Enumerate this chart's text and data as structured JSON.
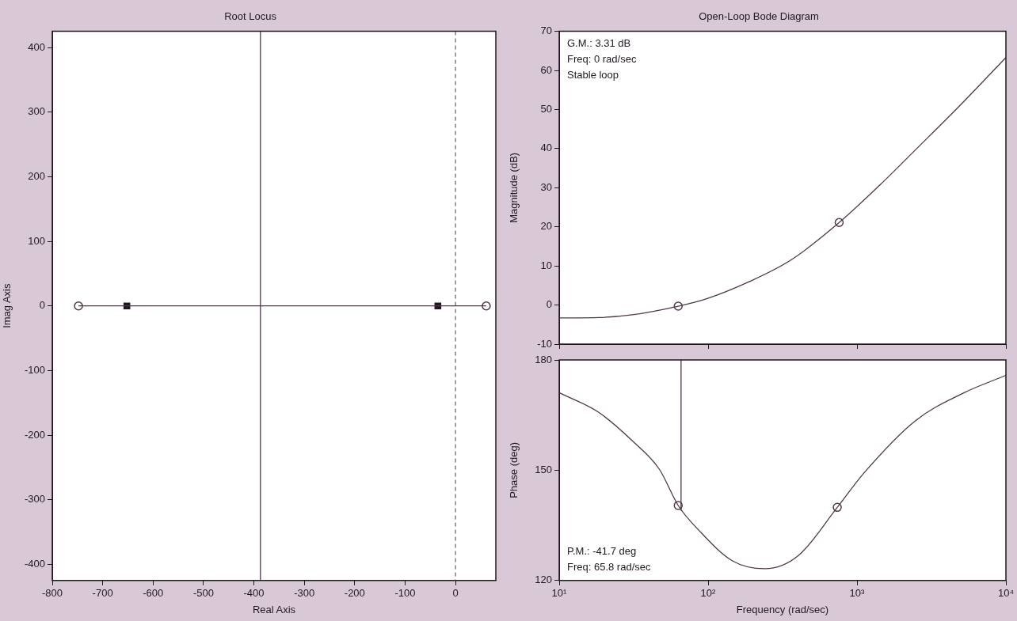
{
  "chart_data": [
    {
      "type": "line",
      "title": "Root Locus",
      "xlabel": "Real Axis",
      "ylabel": "Imag Axis",
      "xlim": [
        -800,
        80
      ],
      "ylim": [
        -425,
        425
      ],
      "xticks": [
        -800,
        -700,
        -600,
        -500,
        -400,
        -300,
        -200,
        -100,
        0
      ],
      "yticks": [
        -400,
        -300,
        -200,
        -100,
        0,
        100,
        200,
        300,
        400
      ],
      "ref_lines": [
        {
          "axis": "x",
          "value": 0,
          "line_style": "dashed",
          "color": "#503848"
        }
      ],
      "series": [
        {
          "type": "line",
          "color": "#503848",
          "x": [
            -748,
            61
          ],
          "values": [
            0,
            0
          ]
        },
        {
          "type": "line",
          "color": "#503848",
          "x": [
            -387,
            -387
          ],
          "values": [
            -425,
            425
          ]
        },
        {
          "type": "scatter",
          "marker": "circle",
          "color": "#503848",
          "x": [
            -748,
            61
          ],
          "values": [
            0,
            0
          ]
        },
        {
          "type": "scatter",
          "marker": "square",
          "color": "#201820",
          "x": [
            -652,
            -35
          ],
          "values": [
            0,
            0
          ]
        }
      ]
    },
    {
      "type": "line",
      "title": "Open-Loop Bode Diagram",
      "ylabel": "Magnitude (dB)",
      "log": "x",
      "tick_labels": "y",
      "xlim": [
        10,
        10000
      ],
      "ylim": [
        -10,
        70
      ],
      "xticks": [
        {
          "value": 10,
          "label": null
        },
        {
          "value": 100,
          "label": null
        },
        {
          "value": 1000,
          "label": null
        },
        {
          "value": 10000,
          "label": null
        }
      ],
      "yticks": [
        -10,
        0,
        10,
        20,
        30,
        40,
        50,
        60,
        70
      ],
      "annotations": [
        "G.M.: 3.31 dB",
        "Freq: 0 rad/sec",
        "Stable loop"
      ],
      "series": [
        {
          "type": "line",
          "color": "#503848",
          "x": [
            10,
            18.5,
            31,
            63,
            96,
            187,
            363,
            759,
            1480,
            2455,
            4786,
            10000
          ],
          "values": [
            -3.3,
            -3.2,
            -2.5,
            -0.3,
            1.5,
            5.9,
            11.6,
            21.1,
            31.3,
            39.6,
            50.6,
            63.3
          ]
        },
        {
          "type": "scatter",
          "marker": "circle",
          "color": "#503848",
          "x": [
            63,
            759
          ],
          "values": [
            -0.3,
            21.1
          ]
        }
      ]
    },
    {
      "type": "line",
      "xlabel": "Frequency (rad/sec)",
      "ylabel": "Phase (deg)",
      "log": "x",
      "xlim": [
        10,
        10000
      ],
      "ylim": [
        120,
        180
      ],
      "xticks": [
        {
          "value": 10,
          "label": "10¹"
        },
        {
          "value": 100,
          "label": "10²"
        },
        {
          "value": 1000,
          "label": "10³"
        },
        {
          "value": 10000,
          "label": "10⁴"
        }
      ],
      "yticks": [
        120,
        150,
        180
      ],
      "annotations": [
        "P.M.: -41.7 deg",
        "Freq: 65.8 rad/sec"
      ],
      "series": [
        {
          "type": "line",
          "color": "#503848",
          "x": [
            10,
            18.5,
            31,
            47,
            63,
            87,
            145,
            240,
            404,
            737,
            1122,
            2455,
            5248,
            10000
          ],
          "values": [
            171.1,
            165.7,
            158,
            150.3,
            140.4,
            133.6,
            125.4,
            123.2,
            126.8,
            139.9,
            149.4,
            163.4,
            171.1,
            175.8
          ]
        },
        {
          "type": "line",
          "color": "#503848",
          "x": [
            65.8,
            65.8
          ],
          "values": [
            139,
            180
          ]
        },
        {
          "type": "scatter",
          "marker": "circle",
          "color": "#503848",
          "x": [
            63,
            737
          ],
          "values": [
            140.4,
            139.9
          ]
        }
      ]
    }
  ]
}
